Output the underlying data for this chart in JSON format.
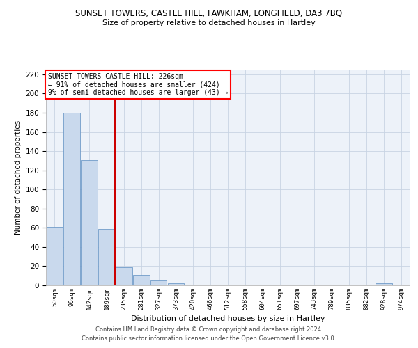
{
  "title": "SUNSET TOWERS, CASTLE HILL, FAWKHAM, LONGFIELD, DA3 7BQ",
  "subtitle": "Size of property relative to detached houses in Hartley",
  "xlabel": "Distribution of detached houses by size in Hartley",
  "ylabel": "Number of detached properties",
  "categories": [
    "50sqm",
    "96sqm",
    "142sqm",
    "189sqm",
    "235sqm",
    "281sqm",
    "327sqm",
    "373sqm",
    "420sqm",
    "466sqm",
    "512sqm",
    "558sqm",
    "604sqm",
    "651sqm",
    "697sqm",
    "743sqm",
    "789sqm",
    "835sqm",
    "882sqm",
    "928sqm",
    "974sqm"
  ],
  "values": [
    61,
    180,
    131,
    59,
    19,
    11,
    5,
    2,
    0,
    0,
    0,
    0,
    0,
    0,
    0,
    0,
    0,
    0,
    0,
    2,
    0
  ],
  "bar_color": "#c9d9ed",
  "bar_edge_color": "#5b8dc0",
  "grid_color": "#c8d4e3",
  "background_color": "#edf2f9",
  "vline_x": 3.5,
  "vline_color": "#cc0000",
  "ylim": [
    0,
    225
  ],
  "yticks": [
    0,
    20,
    40,
    60,
    80,
    100,
    120,
    140,
    160,
    180,
    200,
    220
  ],
  "annotation_title": "SUNSET TOWERS CASTLE HILL: 226sqm",
  "annotation_line1": "← 91% of detached houses are smaller (424)",
  "annotation_line2": "9% of semi-detached houses are larger (43) →",
  "footer1": "Contains HM Land Registry data © Crown copyright and database right 2024.",
  "footer2": "Contains public sector information licensed under the Open Government Licence v3.0."
}
